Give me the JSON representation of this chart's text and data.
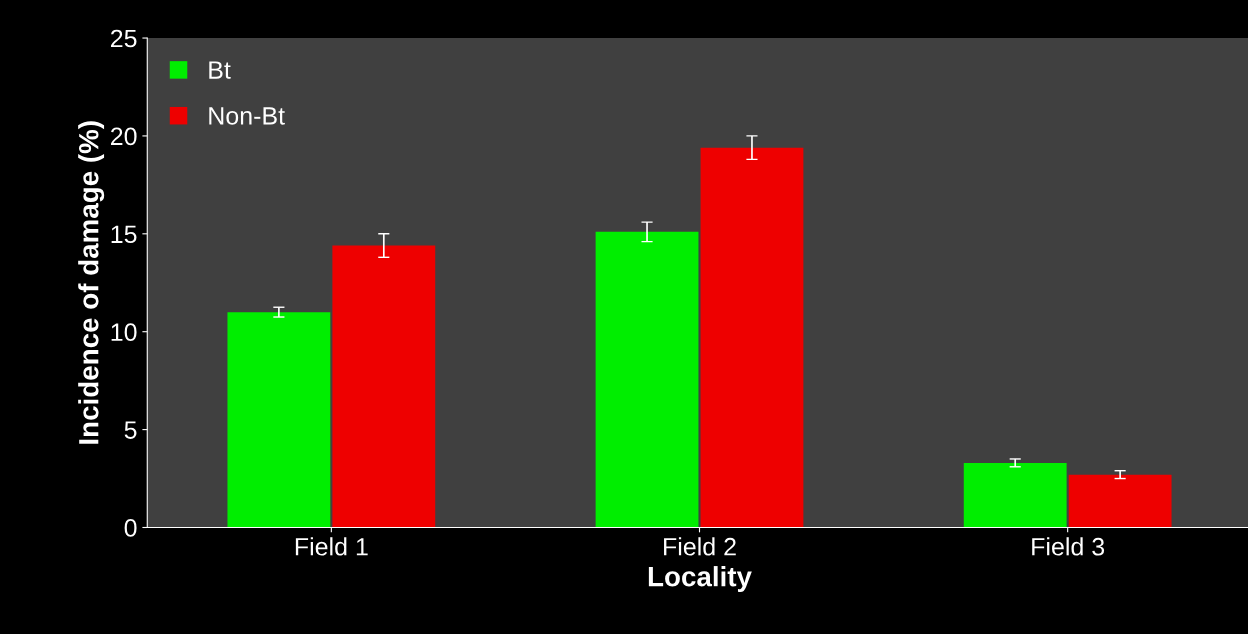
{
  "chart_data": {
    "type": "bar",
    "xlabel": "Locality",
    "ylabel": "Incidence of damage (%)",
    "categories": [
      "Field 1",
      "Field 2",
      "Field 3"
    ],
    "series": [
      {
        "name": "Bt",
        "color": "#00ee00",
        "values": [
          11.0,
          15.1,
          3.3
        ],
        "errors": [
          0.25,
          0.5,
          0.2
        ]
      },
      {
        "name": "Non-Bt",
        "color": "#ee0000",
        "values": [
          14.4,
          19.4,
          2.7
        ],
        "errors": [
          0.6,
          0.6,
          0.2
        ]
      }
    ],
    "ylim": [
      0,
      25
    ],
    "yticks": [
      0,
      5,
      10,
      15,
      20,
      25
    ],
    "grid": false,
    "legend": "top left"
  }
}
